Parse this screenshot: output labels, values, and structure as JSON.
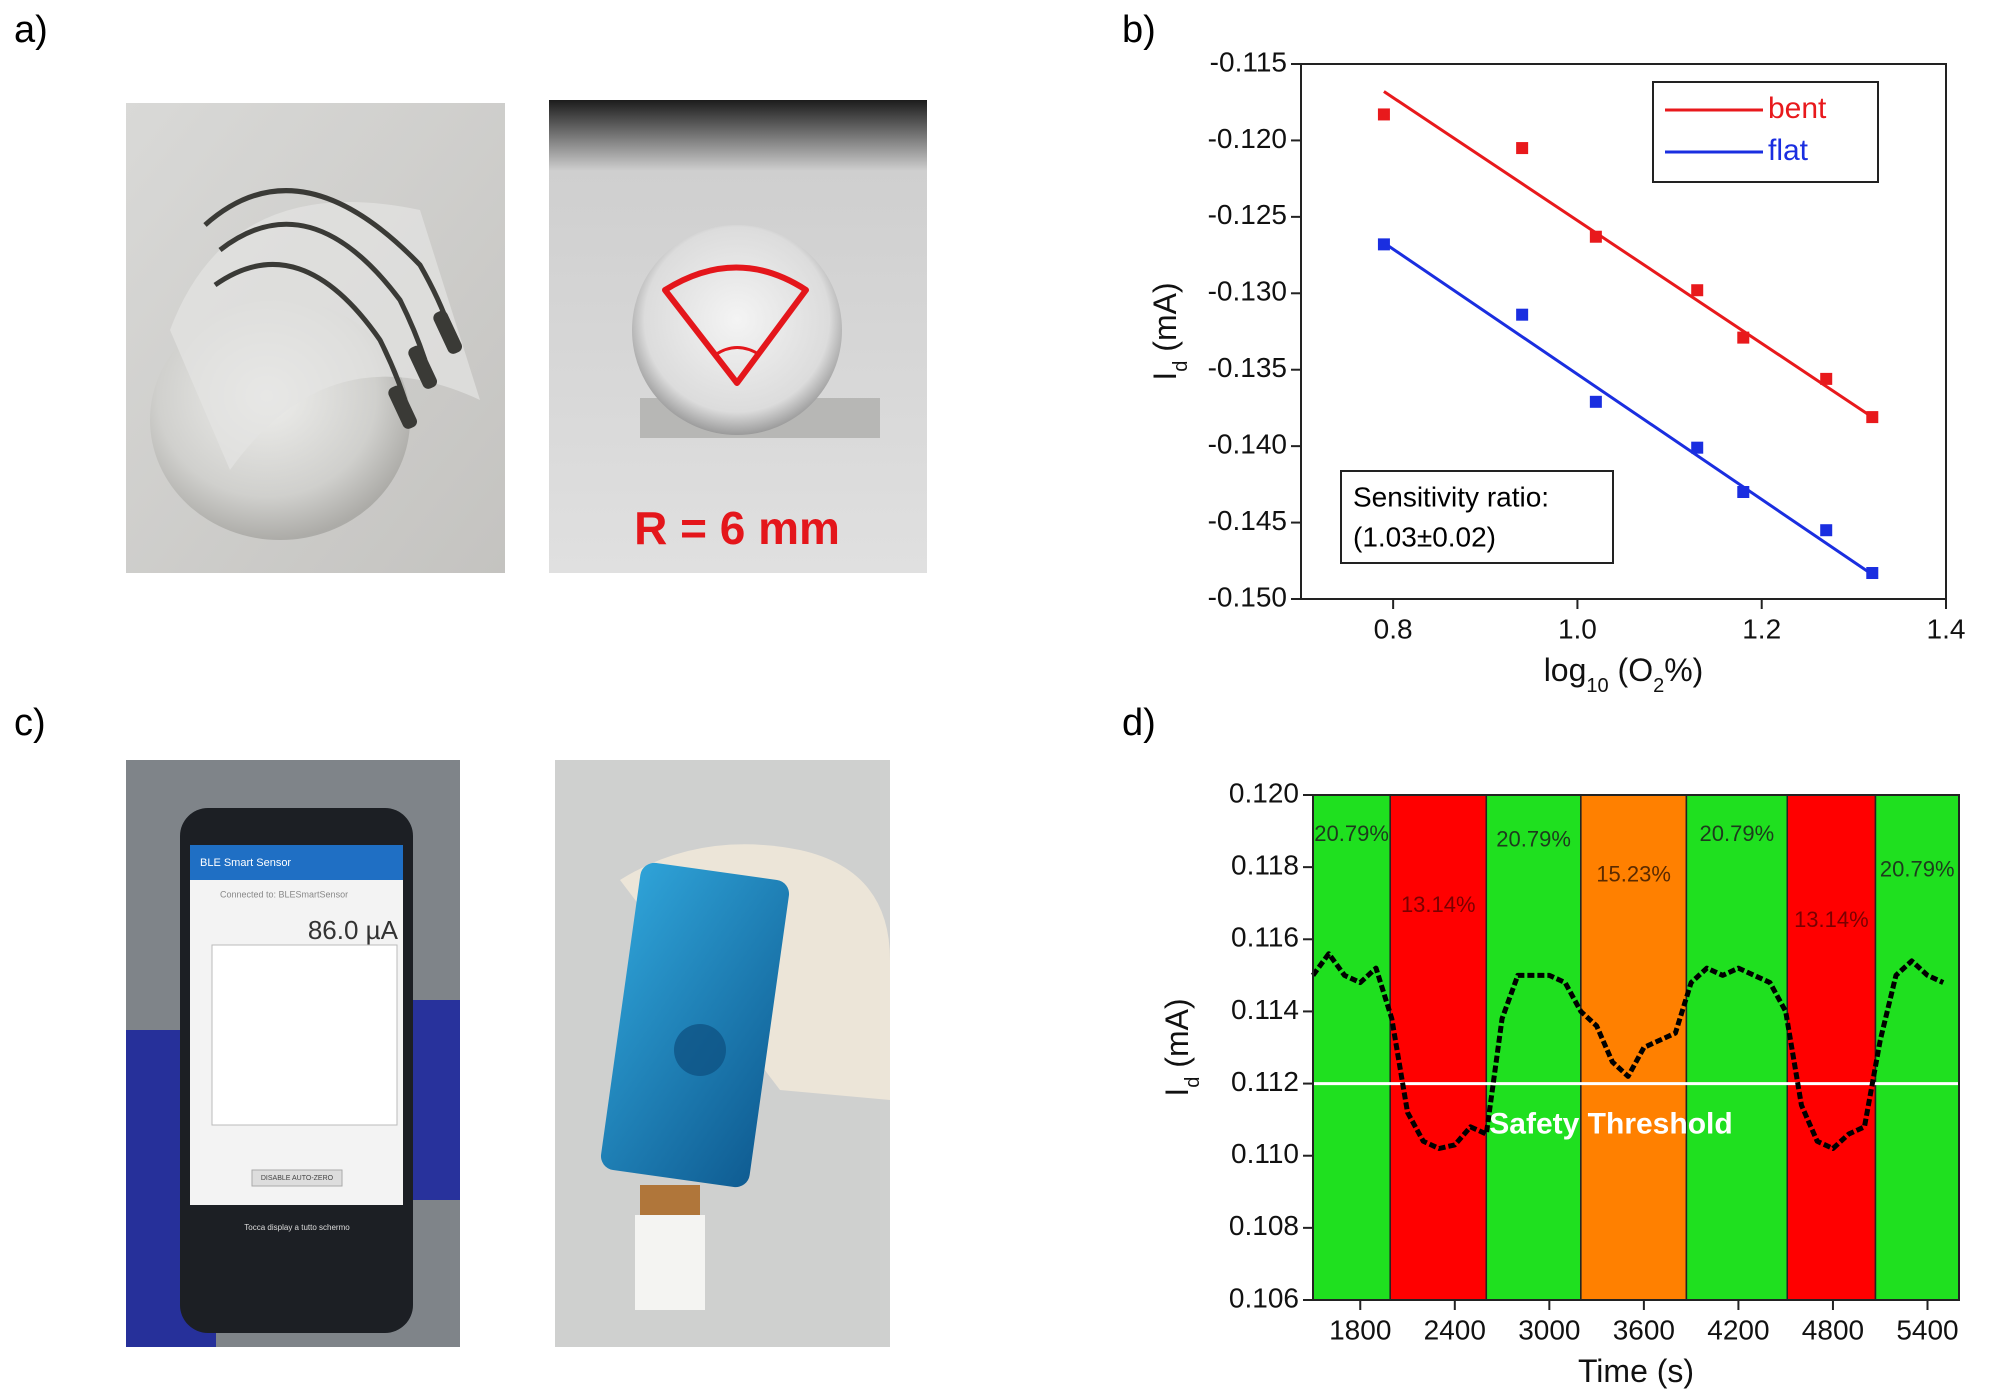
{
  "panel_labels": [
    "a)",
    "b)",
    "c)",
    "d)"
  ],
  "photos": {
    "bend_radius": "R = 6 mm",
    "app_title": "BLE Smart Sensor",
    "app_status": "Connected to: BLESmartSensor",
    "app_reading": "86.0 µA",
    "app_button": "DISABLE AUTO-ZERO",
    "app_hint": "Tocca display a tutto schermo"
  },
  "chart_data": [
    {
      "type": "scatter",
      "xlabel": [
        "log",
        "10",
        " (O",
        "2",
        "%)"
      ],
      "ylabel": [
        "I",
        "d",
        " (mA)"
      ],
      "x": [
        0.79,
        0.94,
        1.02,
        1.13,
        1.18,
        1.27,
        1.32
      ],
      "series": [
        {
          "name": "bent",
          "color": "#e8191c",
          "values": [
            -0.1183,
            -0.1205,
            -0.1263,
            -0.1298,
            -0.1329,
            -0.1356,
            -0.1381
          ],
          "fit_x": [
            0.79,
            1.32
          ],
          "fit_values": [
            -0.1168,
            -0.1381
          ]
        },
        {
          "name": "flat",
          "color": "#1a2ee0",
          "values": [
            -0.1268,
            -0.1314,
            -0.1371,
            -0.1401,
            -0.143,
            -0.1455,
            -0.1483
          ],
          "fit_x": [
            0.79,
            1.32
          ],
          "fit_values": [
            -0.1267,
            -0.1484
          ]
        }
      ],
      "xlim": [
        0.7,
        1.4
      ],
      "xticks": [
        0.8,
        {
          "value": 1,
          "label": "1.0"
        },
        1.2,
        1.4
      ],
      "ylim": [
        -0.15,
        -0.115
      ],
      "yticks": [
        {
          "value": -0.15,
          "label": "-0.150"
        },
        -0.145,
        {
          "value": -0.14,
          "label": "-0.140"
        },
        -0.135,
        {
          "value": -0.13,
          "label": "-0.130"
        },
        -0.125,
        {
          "value": -0.12,
          "label": "-0.120"
        },
        -0.115
      ],
      "legend": "upper right",
      "annotation": [
        "Sensitivity ratio:",
        "(1.03±0.02)"
      ],
      "grid": false
    },
    {
      "type": "line",
      "xlabel": [
        "Time (s)"
      ],
      "ylabel": [
        "I",
        "d",
        " (mA)"
      ],
      "x": [
        1500,
        1600,
        1700,
        1800,
        1900,
        2000,
        2100,
        2200,
        2300,
        2400,
        2500,
        2600,
        2700,
        2800,
        2900,
        3000,
        3100,
        3200,
        3300,
        3400,
        3500,
        3600,
        3700,
        3800,
        3900,
        4000,
        4100,
        4200,
        4300,
        4400,
        4500,
        4600,
        4700,
        4800,
        4900,
        5000,
        5100,
        5200,
        5300,
        5400,
        5500
      ],
      "series": [
        {
          "name": "I_d",
          "color": "#000000",
          "values": [
            0.115,
            0.1156,
            0.115,
            0.1148,
            0.1152,
            0.1138,
            0.1112,
            0.1104,
            0.1102,
            0.1103,
            0.1108,
            0.1106,
            0.1138,
            0.115,
            0.115,
            0.115,
            0.1148,
            0.114,
            0.1136,
            0.1126,
            0.1122,
            0.113,
            0.1132,
            0.1134,
            0.1148,
            0.1152,
            0.115,
            0.1152,
            0.115,
            0.1148,
            0.114,
            0.1114,
            0.1104,
            0.1102,
            0.1106,
            0.1108,
            0.1132,
            0.115,
            0.1154,
            0.115,
            0.1148
          ]
        }
      ],
      "bands": [
        {
          "start": 1500,
          "end": 1990,
          "label": "20.79%",
          "color": "#1fe01f"
        },
        {
          "start": 1990,
          "end": 2600,
          "label": "13.14%",
          "color": "#ff0000"
        },
        {
          "start": 2600,
          "end": 3200,
          "label": "20.79%",
          "color": "#1fe01f"
        },
        {
          "start": 3200,
          "end": 3870,
          "label": "15.23%",
          "color": "#ff8000"
        },
        {
          "start": 3870,
          "end": 4510,
          "label": "20.79%",
          "color": "#1fe01f"
        },
        {
          "start": 4510,
          "end": 5070,
          "label": "13.14%",
          "color": "#ff0000"
        },
        {
          "start": 5070,
          "end": 5600,
          "label": "20.79%",
          "color": "#1fe01f"
        }
      ],
      "threshold": 0.112,
      "threshold_label": "Safety Threshold",
      "xlim": [
        1500,
        5600
      ],
      "xticks": [
        1800,
        2400,
        3000,
        3600,
        4200,
        4800,
        5400
      ],
      "ylim": [
        0.106,
        0.12
      ],
      "yticks": [
        0.106,
        0.108,
        {
          "value": 0.11,
          "label": "0.110"
        },
        0.112,
        0.114,
        0.116,
        0.118,
        {
          "value": 0.12,
          "label": "0.120"
        }
      ],
      "grid": false
    }
  ]
}
